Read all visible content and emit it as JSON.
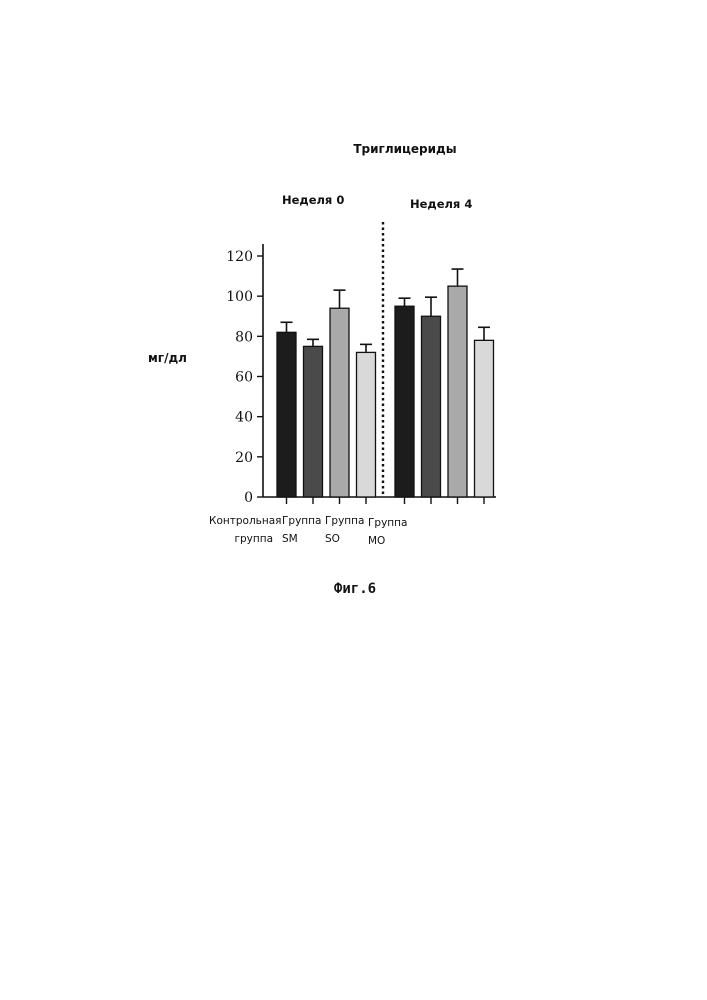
{
  "chart_data": {
    "type": "bar",
    "title": "Триглицериды",
    "ylabel": "мг/дл",
    "ylim": [
      0,
      120
    ],
    "yticks": [
      "0",
      "20",
      "40",
      "60",
      "80",
      "100",
      "120"
    ],
    "groups": [
      "Неделя 0",
      "Неделя 4"
    ],
    "categories": [
      "Контрольная группа",
      "Группа SM",
      "Группа SO",
      "Группа MO"
    ],
    "series": [
      {
        "name": "Неделя 0",
        "values": [
          82,
          75,
          94,
          72
        ],
        "errors": [
          5,
          3.5,
          9,
          4
        ]
      },
      {
        "name": "Неделя 4",
        "values": [
          95,
          90,
          105,
          78
        ],
        "errors": [
          4,
          9.5,
          8.5,
          6.5
        ]
      }
    ],
    "bar_colors": [
      "#1c1c1c",
      "#4a4a4a",
      "#a9a9a9",
      "#d9d9d9"
    ],
    "grid": false
  },
  "category_labels": [
    {
      "line1": "Контрольная",
      "line2": "группа"
    },
    {
      "line1": "Группа",
      "line2": "SM"
    },
    {
      "line1": "Группа",
      "line2": "SO"
    },
    {
      "line1": "Группа",
      "line2": "MO"
    }
  ],
  "figure_caption": "Фиг.6"
}
